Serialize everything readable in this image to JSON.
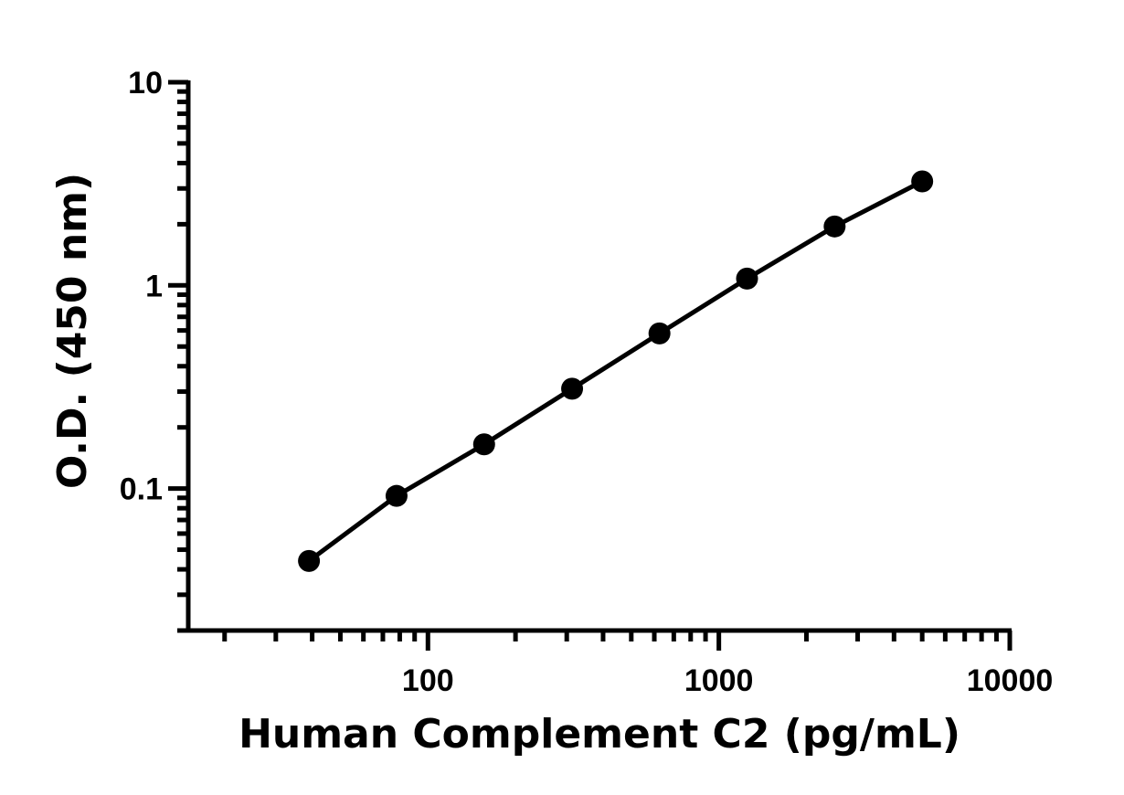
{
  "chart_data": {
    "type": "scatter",
    "title": "",
    "xlabel": "Human Complement C2 (pg/mL)",
    "ylabel": "O.D. (450 nm)",
    "x_scale": "log",
    "y_scale": "log",
    "xlim": [
      15,
      10000
    ],
    "ylim": [
      0.02,
      10
    ],
    "x_ticks": [
      {
        "value": 100,
        "label": "100"
      },
      {
        "value": 1000,
        "label": "1000"
      },
      {
        "value": 10000,
        "label": "10000"
      }
    ],
    "y_ticks": [
      {
        "value": 0.1,
        "label": "0.1"
      },
      {
        "value": 1,
        "label": "1"
      },
      {
        "value": 10,
        "label": "10"
      }
    ],
    "grid": false,
    "legend": "none",
    "colors": {
      "line": "#000000",
      "marker": "#000000"
    },
    "series": [
      {
        "x": [
          39,
          78,
          156,
          313,
          625,
          1250,
          2500,
          5000
        ],
        "y": [
          0.044,
          0.092,
          0.165,
          0.31,
          0.58,
          1.08,
          1.95,
          3.25
        ],
        "fit_line": true
      }
    ]
  }
}
